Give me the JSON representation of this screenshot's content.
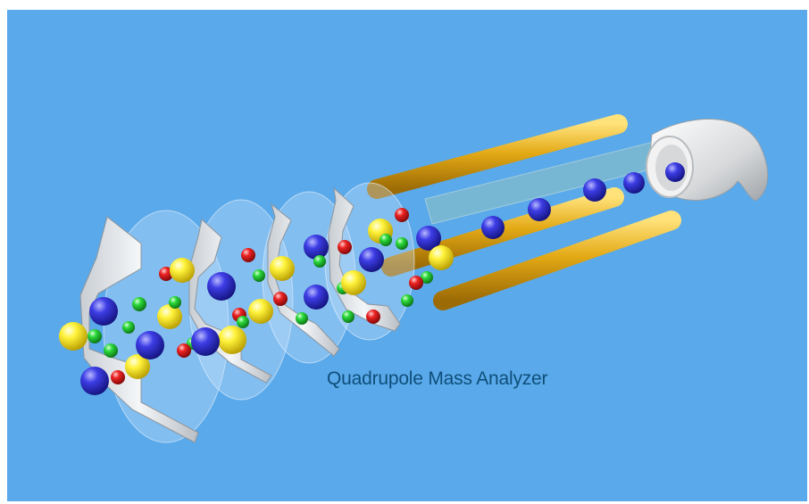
{
  "caption": "Quadrupole Mass Analyzer",
  "colors": {
    "background": "#5aa9ea",
    "caption": "#0e4f7a",
    "rod": "#e0a814",
    "disk": "#dfe3e7",
    "detector": "#e2e2e2",
    "ion_blue": "#2b2bd6",
    "ion_yellow": "#ffe629",
    "ion_green": "#1fd22c",
    "ion_red": "#e61a1a"
  },
  "icons": [
    "ion-source-disk",
    "quadrupole-rod",
    "ion-sphere",
    "detector-horn"
  ]
}
